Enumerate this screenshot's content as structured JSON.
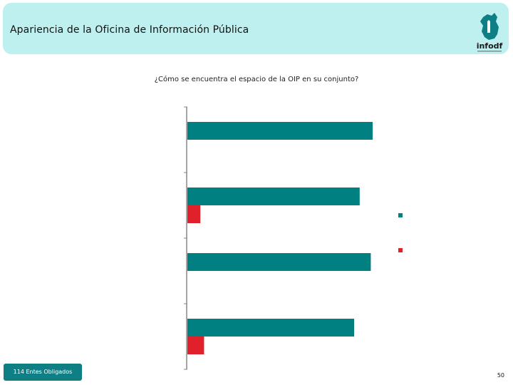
{
  "header": {
    "title": "Apariencia de la Oficina de Información Pública",
    "logo_text": "infodf"
  },
  "chart_data": {
    "type": "bar",
    "orientation": "horizontal",
    "title": "¿Cómo se encuentra el espacio de la OIP en su conjunto?",
    "categories": [
      "",
      "",
      "",
      ""
    ],
    "series": [
      {
        "color": "#008080",
        "values": [
          100,
          93,
          99,
          90
        ]
      },
      {
        "color": "#e0202a",
        "values": [
          0,
          7,
          0,
          9
        ]
      }
    ],
    "xlim": [
      0,
      100
    ],
    "grid": false,
    "legend_position": "right"
  },
  "footer": {
    "badge": "114 Entes Obligados",
    "page_number": "50"
  },
  "colors": {
    "header_bg": "#bff0f0",
    "teal": "#008080",
    "red": "#e0202a",
    "badge_bg": "#0e7f85"
  }
}
